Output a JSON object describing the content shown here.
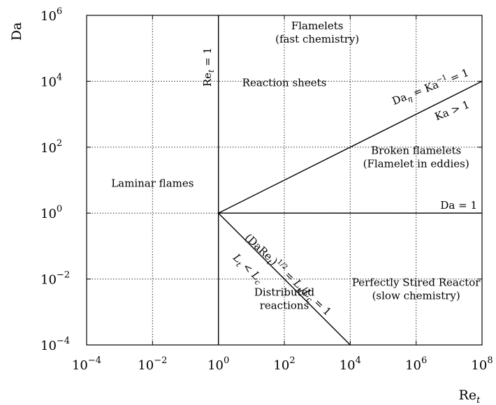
{
  "chart_data": {
    "type": "line",
    "xlabel": "Re_t",
    "ylabel": "Da",
    "xscale": "log",
    "yscale": "log",
    "xlim": [
      0.0001,
      100000000
    ],
    "ylim": [
      0.0001,
      1000000
    ],
    "grid": true,
    "x_ticks": [
      {
        "value": 0.0001,
        "base": "10",
        "exp": "−4"
      },
      {
        "value": 0.01,
        "base": "10",
        "exp": "−2"
      },
      {
        "value": 1,
        "base": "10",
        "exp": "0"
      },
      {
        "value": 100,
        "base": "10",
        "exp": "2"
      },
      {
        "value": 10000,
        "base": "10",
        "exp": "4"
      },
      {
        "value": 1000000,
        "base": "10",
        "exp": "6"
      },
      {
        "value": 100000000,
        "base": "10",
        "exp": "8"
      }
    ],
    "y_ticks": [
      {
        "value": 0.0001,
        "base": "10",
        "exp": "−4"
      },
      {
        "value": 0.01,
        "base": "10",
        "exp": "−2"
      },
      {
        "value": 1,
        "base": "10",
        "exp": "0"
      },
      {
        "value": 100,
        "base": "10",
        "exp": "2"
      },
      {
        "value": 10000,
        "base": "10",
        "exp": "4"
      },
      {
        "value": 1000000,
        "base": "10",
        "exp": "6"
      }
    ],
    "boundaries": [
      {
        "label": "Re_t = 1",
        "x": [
          1,
          1
        ],
        "y": [
          0.0001,
          1000000
        ]
      },
      {
        "label": "Da = 1",
        "x": [
          1,
          100000000
        ],
        "y": [
          1,
          1
        ]
      },
      {
        "label": "Da_η = Ka^−1 = 1",
        "x": [
          1,
          100000000
        ],
        "y": [
          1,
          10000
        ]
      },
      {
        "label": "(DaRe_t)^1/2 = L_t/L_c = 1",
        "x": [
          1,
          10000
        ],
        "y": [
          1,
          0.0001
        ]
      }
    ],
    "regions": [
      {
        "lines": [
          "Flamelets",
          "(fast chemistry)"
        ],
        "x": 1000,
        "y": 300000
      },
      {
        "lines": [
          "Reaction sheets"
        ],
        "x": 100,
        "y": 9000
      },
      {
        "lines": [
          "Broken flamelets",
          "(Flamelet in eddies)"
        ],
        "x": 1000000,
        "y": 50
      },
      {
        "lines": [
          "Laminar flames"
        ],
        "x": 0.01,
        "y": 8
      },
      {
        "lines": [
          "Perfectly Stired Reactor",
          "(slow chemistry)"
        ],
        "x": 1000000,
        "y": 0.005
      },
      {
        "lines": [
          "Distributed",
          "reactions"
        ],
        "x": 100,
        "y": 0.0025
      }
    ],
    "annotations": [
      {
        "text": "Ka > 1",
        "x": 10000000,
        "y": 1500
      },
      {
        "text": "L_t < L_c",
        "x": 1.4,
        "y": 0.03
      }
    ]
  }
}
